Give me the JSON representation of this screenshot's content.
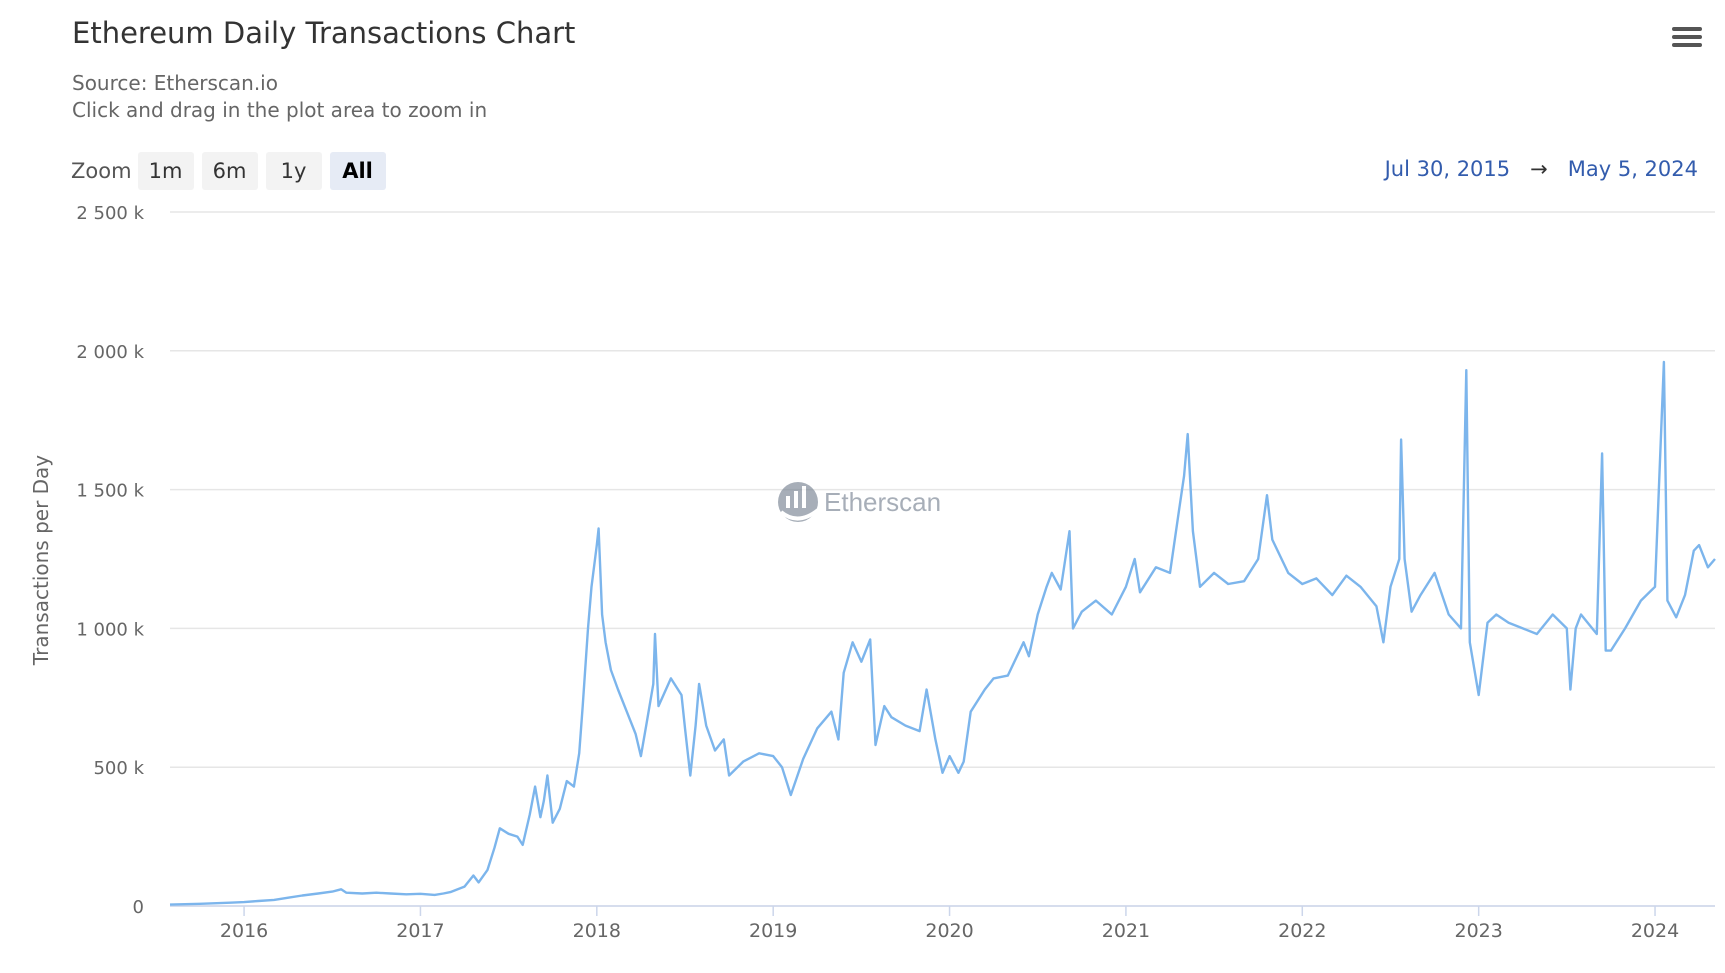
{
  "header": {
    "title": "Ethereum Daily Transactions Chart",
    "source": "Source: Etherscan.io",
    "hint": "Click and drag in the plot area to zoom in",
    "menu_icon": "hamburger-menu-icon"
  },
  "zoom": {
    "label": "Zoom",
    "buttons": [
      "1m",
      "6m",
      "1y",
      "All"
    ],
    "selected": "All"
  },
  "range": {
    "from": "Jul 30, 2015",
    "arrow": "→",
    "to": "May 5, 2024"
  },
  "watermark": {
    "text": "Etherscan"
  },
  "colors": {
    "line": "#7cb5ec",
    "grid": "#e6e6e6",
    "axis": "#ccd6eb",
    "range_text": "#335cad"
  },
  "chart_data": {
    "type": "line",
    "title": "Ethereum Daily Transactions Chart",
    "subtitle": "Source: Etherscan.io",
    "xlabel": "",
    "ylabel": "Transactions per Day",
    "xlim": [
      2015.58,
      2024.34
    ],
    "ylim": [
      0,
      2500000
    ],
    "grid": true,
    "x_ticks": [
      2016,
      2017,
      2018,
      2019,
      2020,
      2021,
      2022,
      2023,
      2024
    ],
    "x_tick_labels": [
      "2016",
      "2017",
      "2018",
      "2019",
      "2020",
      "2021",
      "2022",
      "2023",
      "2024"
    ],
    "y_ticks": [
      0,
      500000,
      1000000,
      1500000,
      2000000,
      2500000
    ],
    "y_tick_labels": [
      "0",
      "500 k",
      "1 000 k",
      "1 500 k",
      "2 000 k",
      "2 500 k"
    ],
    "series": [
      {
        "name": "Transactions",
        "points": [
          [
            2015.58,
            5000
          ],
          [
            2015.75,
            8000
          ],
          [
            2015.92,
            12000
          ],
          [
            2016.0,
            14000
          ],
          [
            2016.08,
            18000
          ],
          [
            2016.17,
            22000
          ],
          [
            2016.25,
            30000
          ],
          [
            2016.33,
            38000
          ],
          [
            2016.42,
            45000
          ],
          [
            2016.5,
            52000
          ],
          [
            2016.55,
            60000
          ],
          [
            2016.58,
            48000
          ],
          [
            2016.67,
            45000
          ],
          [
            2016.75,
            48000
          ],
          [
            2016.83,
            45000
          ],
          [
            2016.92,
            42000
          ],
          [
            2017.0,
            44000
          ],
          [
            2017.08,
            40000
          ],
          [
            2017.13,
            45000
          ],
          [
            2017.17,
            50000
          ],
          [
            2017.25,
            70000
          ],
          [
            2017.3,
            110000
          ],
          [
            2017.33,
            85000
          ],
          [
            2017.38,
            130000
          ],
          [
            2017.42,
            210000
          ],
          [
            2017.45,
            280000
          ],
          [
            2017.5,
            260000
          ],
          [
            2017.55,
            250000
          ],
          [
            2017.58,
            220000
          ],
          [
            2017.62,
            330000
          ],
          [
            2017.65,
            430000
          ],
          [
            2017.68,
            320000
          ],
          [
            2017.7,
            380000
          ],
          [
            2017.72,
            470000
          ],
          [
            2017.75,
            300000
          ],
          [
            2017.79,
            350000
          ],
          [
            2017.83,
            450000
          ],
          [
            2017.87,
            430000
          ],
          [
            2017.9,
            550000
          ],
          [
            2017.92,
            720000
          ],
          [
            2017.95,
            1000000
          ],
          [
            2017.97,
            1150000
          ],
          [
            2018.0,
            1300000
          ],
          [
            2018.01,
            1360000
          ],
          [
            2018.03,
            1050000
          ],
          [
            2018.05,
            950000
          ],
          [
            2018.08,
            850000
          ],
          [
            2018.12,
            780000
          ],
          [
            2018.17,
            700000
          ],
          [
            2018.22,
            620000
          ],
          [
            2018.25,
            540000
          ],
          [
            2018.28,
            650000
          ],
          [
            2018.32,
            800000
          ],
          [
            2018.33,
            980000
          ],
          [
            2018.35,
            720000
          ],
          [
            2018.42,
            820000
          ],
          [
            2018.48,
            760000
          ],
          [
            2018.5,
            640000
          ],
          [
            2018.53,
            470000
          ],
          [
            2018.56,
            650000
          ],
          [
            2018.58,
            800000
          ],
          [
            2018.62,
            650000
          ],
          [
            2018.67,
            560000
          ],
          [
            2018.72,
            600000
          ],
          [
            2018.75,
            470000
          ],
          [
            2018.83,
            520000
          ],
          [
            2018.92,
            550000
          ],
          [
            2019.0,
            540000
          ],
          [
            2019.05,
            500000
          ],
          [
            2019.1,
            400000
          ],
          [
            2019.17,
            530000
          ],
          [
            2019.25,
            640000
          ],
          [
            2019.33,
            700000
          ],
          [
            2019.37,
            600000
          ],
          [
            2019.4,
            840000
          ],
          [
            2019.45,
            950000
          ],
          [
            2019.5,
            880000
          ],
          [
            2019.55,
            960000
          ],
          [
            2019.58,
            580000
          ],
          [
            2019.63,
            720000
          ],
          [
            2019.67,
            680000
          ],
          [
            2019.75,
            650000
          ],
          [
            2019.83,
            630000
          ],
          [
            2019.87,
            780000
          ],
          [
            2019.92,
            600000
          ],
          [
            2019.96,
            480000
          ],
          [
            2020.0,
            540000
          ],
          [
            2020.05,
            480000
          ],
          [
            2020.08,
            520000
          ],
          [
            2020.12,
            700000
          ],
          [
            2020.2,
            780000
          ],
          [
            2020.25,
            820000
          ],
          [
            2020.33,
            830000
          ],
          [
            2020.42,
            950000
          ],
          [
            2020.45,
            900000
          ],
          [
            2020.5,
            1050000
          ],
          [
            2020.55,
            1150000
          ],
          [
            2020.58,
            1200000
          ],
          [
            2020.63,
            1140000
          ],
          [
            2020.68,
            1350000
          ],
          [
            2020.7,
            1000000
          ],
          [
            2020.75,
            1060000
          ],
          [
            2020.83,
            1100000
          ],
          [
            2020.92,
            1050000
          ],
          [
            2021.0,
            1150000
          ],
          [
            2021.05,
            1250000
          ],
          [
            2021.08,
            1130000
          ],
          [
            2021.17,
            1220000
          ],
          [
            2021.25,
            1200000
          ],
          [
            2021.3,
            1420000
          ],
          [
            2021.33,
            1550000
          ],
          [
            2021.35,
            1700000
          ],
          [
            2021.38,
            1350000
          ],
          [
            2021.42,
            1150000
          ],
          [
            2021.5,
            1200000
          ],
          [
            2021.58,
            1160000
          ],
          [
            2021.67,
            1170000
          ],
          [
            2021.75,
            1250000
          ],
          [
            2021.8,
            1480000
          ],
          [
            2021.83,
            1320000
          ],
          [
            2021.92,
            1200000
          ],
          [
            2022.0,
            1160000
          ],
          [
            2022.08,
            1180000
          ],
          [
            2022.17,
            1120000
          ],
          [
            2022.25,
            1190000
          ],
          [
            2022.33,
            1150000
          ],
          [
            2022.42,
            1080000
          ],
          [
            2022.46,
            950000
          ],
          [
            2022.5,
            1150000
          ],
          [
            2022.55,
            1250000
          ],
          [
            2022.56,
            1680000
          ],
          [
            2022.58,
            1250000
          ],
          [
            2022.62,
            1060000
          ],
          [
            2022.67,
            1120000
          ],
          [
            2022.75,
            1200000
          ],
          [
            2022.83,
            1050000
          ],
          [
            2022.9,
            1000000
          ],
          [
            2022.93,
            1930000
          ],
          [
            2022.95,
            950000
          ],
          [
            2023.0,
            760000
          ],
          [
            2023.05,
            1020000
          ],
          [
            2023.1,
            1050000
          ],
          [
            2023.17,
            1020000
          ],
          [
            2023.25,
            1000000
          ],
          [
            2023.33,
            980000
          ],
          [
            2023.42,
            1050000
          ],
          [
            2023.5,
            1000000
          ],
          [
            2023.52,
            780000
          ],
          [
            2023.55,
            1000000
          ],
          [
            2023.58,
            1050000
          ],
          [
            2023.67,
            980000
          ],
          [
            2023.7,
            1630000
          ],
          [
            2023.72,
            920000
          ],
          [
            2023.75,
            920000
          ],
          [
            2023.83,
            1000000
          ],
          [
            2023.92,
            1100000
          ],
          [
            2024.0,
            1150000
          ],
          [
            2024.05,
            1960000
          ],
          [
            2024.07,
            1100000
          ],
          [
            2024.12,
            1040000
          ],
          [
            2024.17,
            1120000
          ],
          [
            2024.22,
            1280000
          ],
          [
            2024.25,
            1300000
          ],
          [
            2024.3,
            1220000
          ],
          [
            2024.34,
            1250000
          ]
        ]
      }
    ]
  }
}
